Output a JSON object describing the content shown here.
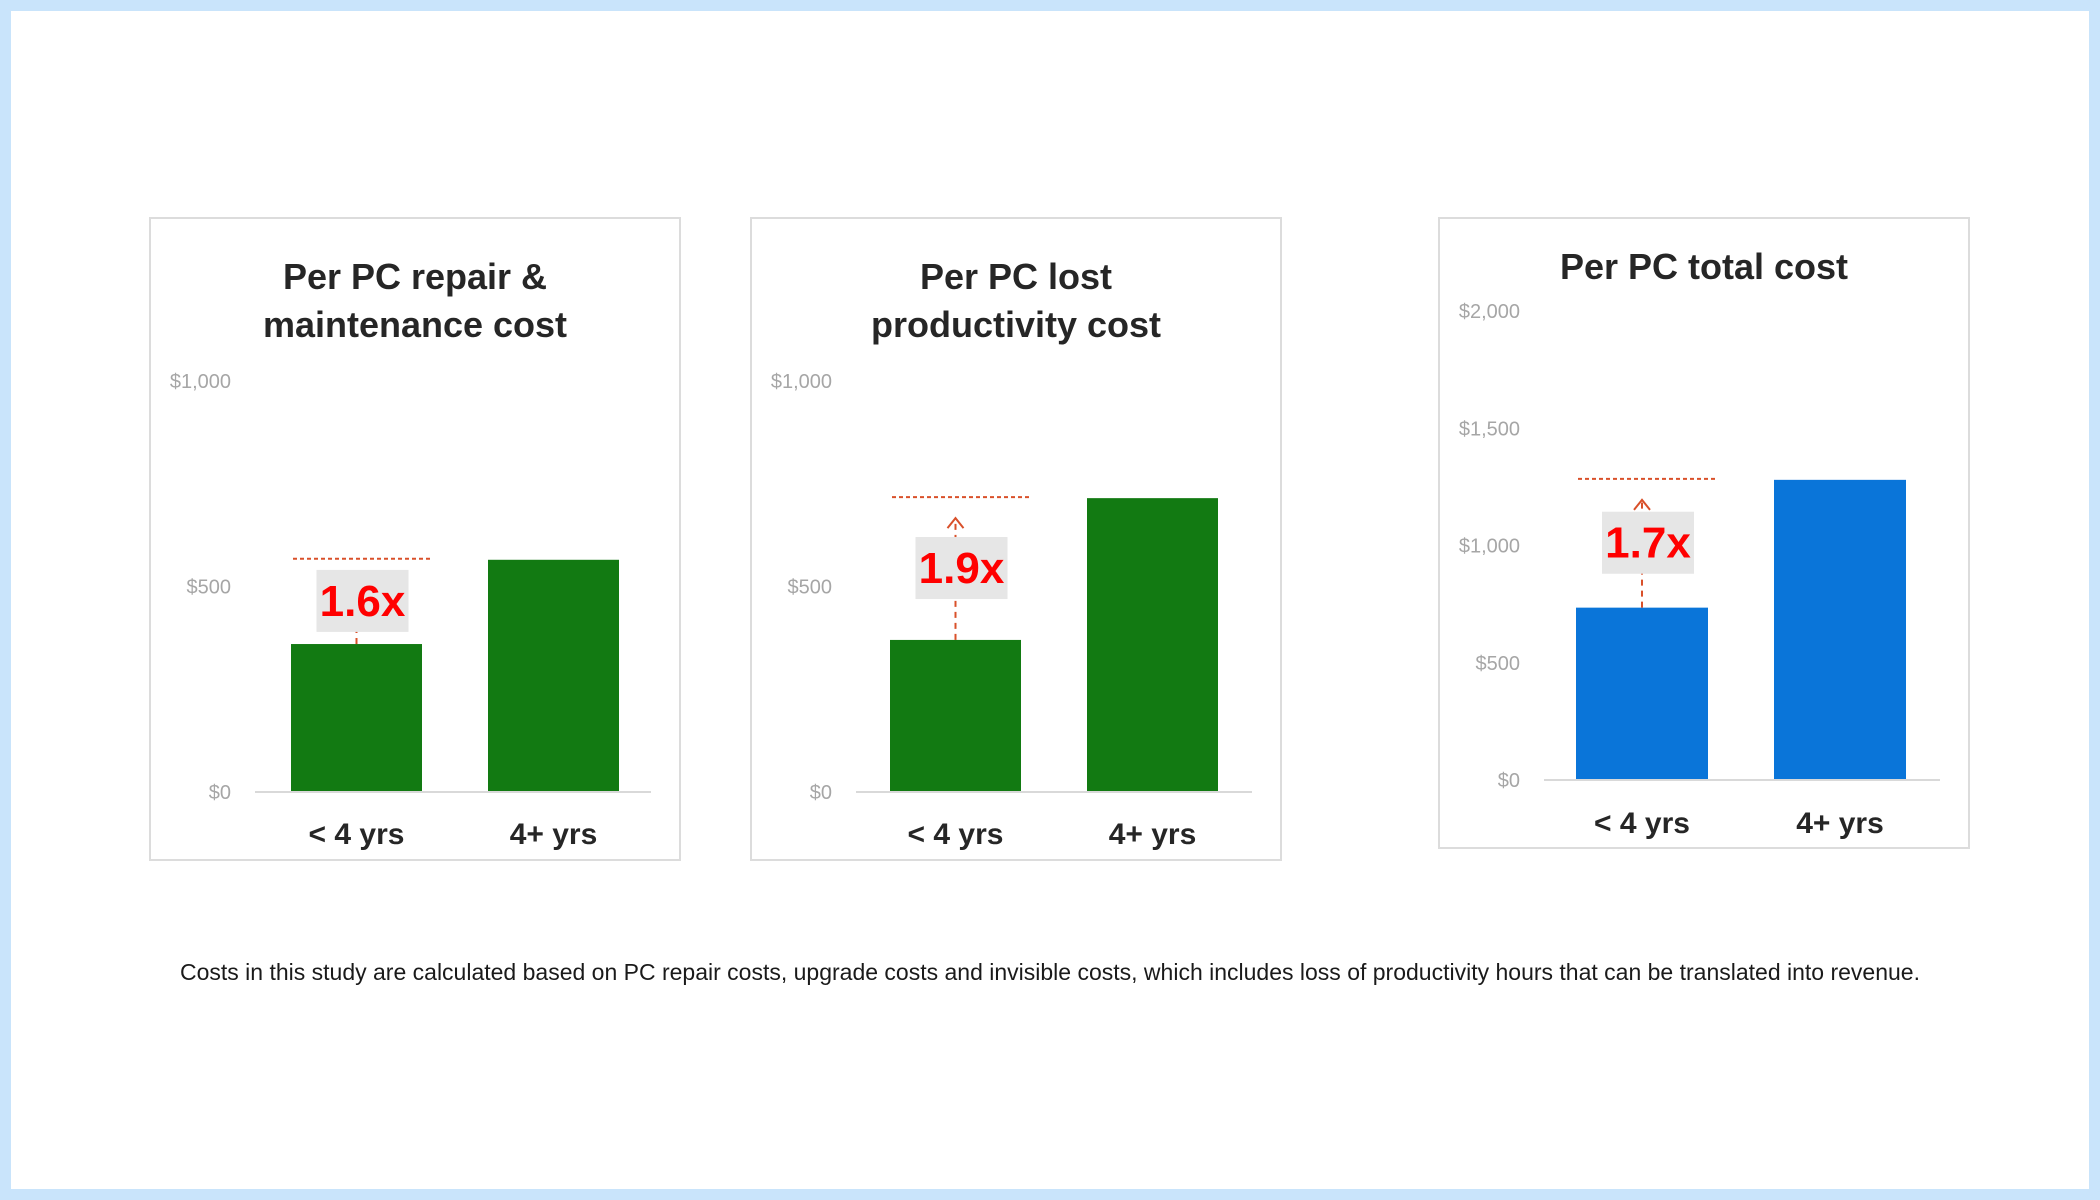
{
  "chart_data": [
    {
      "type": "bar",
      "title": "Per PC repair & maintenance cost",
      "categories": [
        "< 4 yrs",
        "4+ yrs"
      ],
      "values": [
        360,
        565
      ],
      "ylim": [
        0,
        1000
      ],
      "yticks": [
        "$0",
        "$500",
        "$1,000"
      ],
      "ytick_values": [
        0,
        500,
        1000
      ],
      "multiplier_label": "1.6x",
      "bar_color": "#127a12",
      "grid": false
    },
    {
      "type": "bar",
      "title": "Per PC lost productivity cost",
      "categories": [
        "< 4 yrs",
        "4+ yrs"
      ],
      "values": [
        370,
        715
      ],
      "ylim": [
        0,
        1000
      ],
      "yticks": [
        "$0",
        "$500",
        "$1,000"
      ],
      "ytick_values": [
        0,
        500,
        1000
      ],
      "multiplier_label": "1.9x",
      "bar_color": "#127a12",
      "grid": false
    },
    {
      "type": "bar",
      "title": "Per PC total cost",
      "categories": [
        "< 4 yrs",
        "4+ yrs"
      ],
      "values": [
        735,
        1280
      ],
      "ylim": [
        0,
        2000
      ],
      "yticks": [
        "$0",
        "$500",
        "$1,000",
        "$1,500",
        "$2,000"
      ],
      "ytick_values": [
        0,
        500,
        1000,
        1500,
        2000
      ],
      "multiplier_label": "1.7x",
      "bar_color": "#0a75d9",
      "grid": false
    }
  ],
  "annotation_color": "#d9502a",
  "footnote": "Costs in this study are calculated based on PC repair costs, upgrade costs and invisible  costs, which includes loss of productivity hours that can be translated into revenue."
}
